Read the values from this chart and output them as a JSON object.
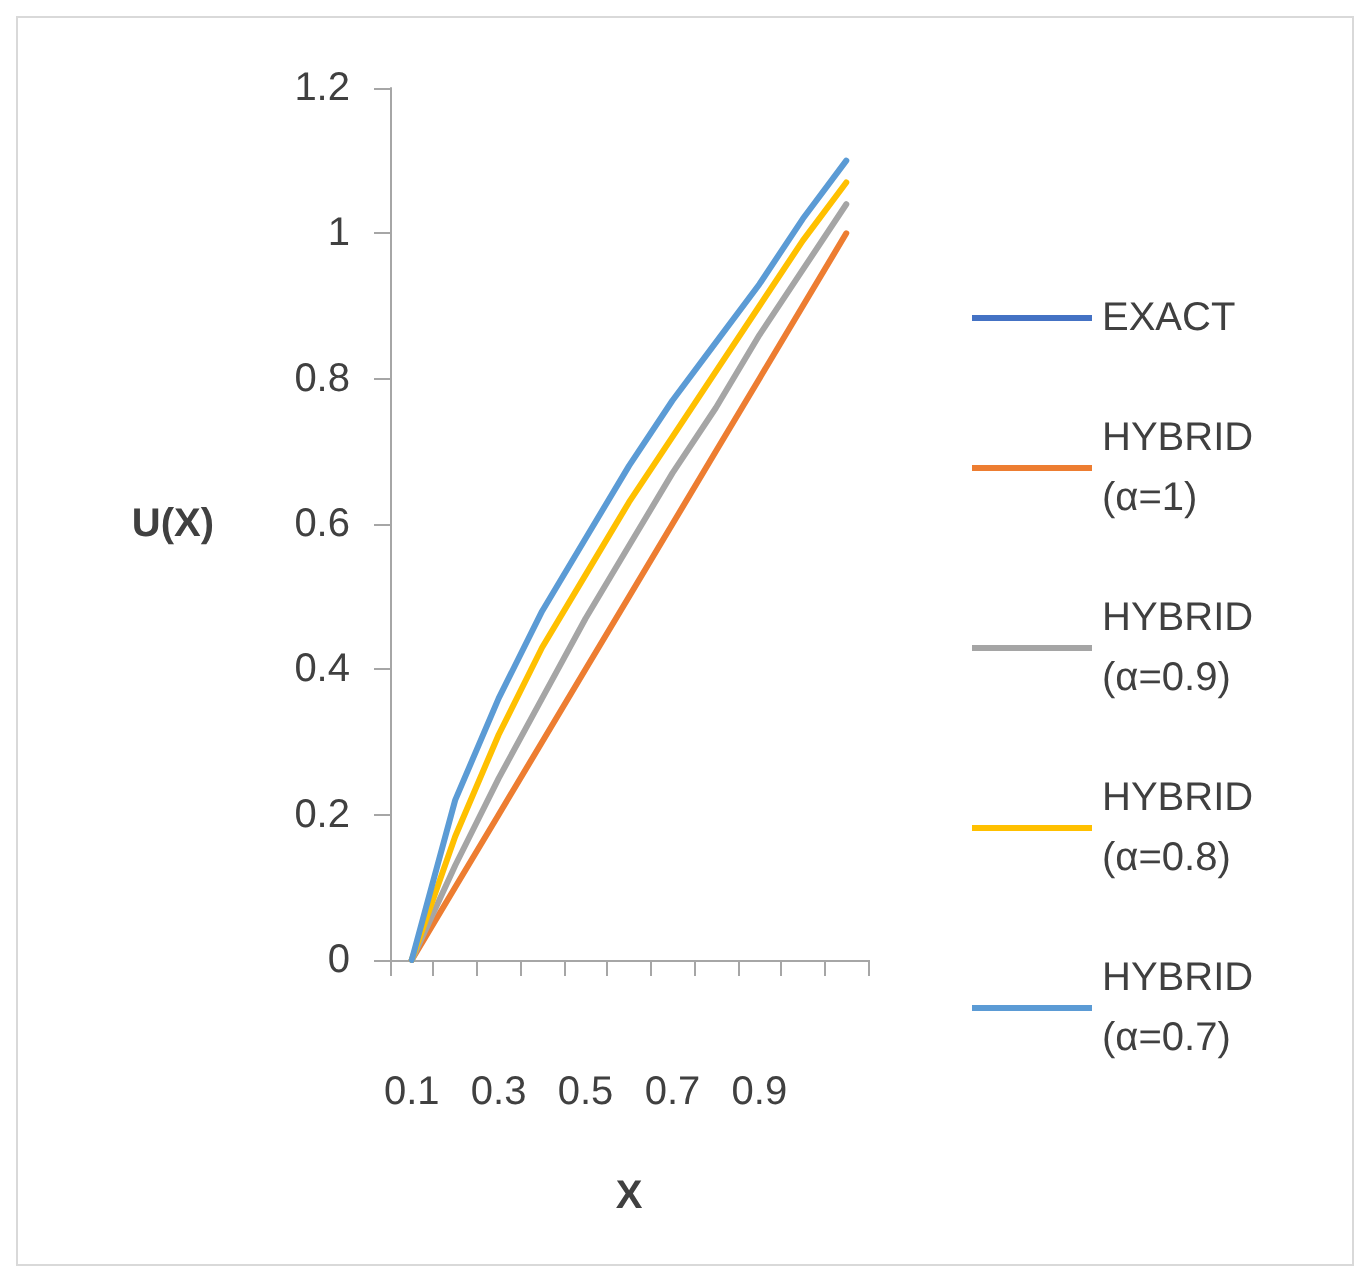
{
  "chart_data": {
    "type": "line",
    "xlabel": "X",
    "ylabel": "U(X)",
    "categories": [
      "0.1",
      null,
      "0.3",
      null,
      "0.5",
      null,
      "0.7",
      null,
      "0.9",
      null,
      null
    ],
    "series": [
      {
        "name": "EXACT",
        "color": "#4472c4",
        "values": [
          null,
          null,
          null,
          null,
          null,
          null,
          null,
          null,
          null,
          null,
          null
        ]
      },
      {
        "name": "HYBRID (α=1)",
        "color": "#ed7d31",
        "values": [
          0,
          0.1,
          0.2,
          0.3,
          0.4,
          0.5,
          0.6,
          0.7,
          0.8,
          0.9,
          1.0
        ]
      },
      {
        "name": "HYBRID (α=0.9)",
        "color": "#a5a5a5",
        "values": [
          0,
          0.13,
          0.25,
          0.36,
          0.47,
          0.57,
          0.67,
          0.76,
          0.86,
          0.95,
          1.04
        ]
      },
      {
        "name": "HYBRID (α=0.8)",
        "color": "#ffc000",
        "values": [
          0,
          0.17,
          0.31,
          0.43,
          0.53,
          0.63,
          0.72,
          0.81,
          0.9,
          0.99,
          1.07
        ]
      },
      {
        "name": "HYBRID (α=0.7)",
        "color": "#5b9bd5",
        "values": [
          0,
          0.22,
          0.36,
          0.48,
          0.58,
          0.68,
          0.77,
          0.85,
          0.93,
          1.02,
          1.1
        ]
      }
    ],
    "ylim": [
      0,
      1.2
    ],
    "yticks": [
      0,
      0.2,
      0.4,
      0.6,
      0.8,
      1,
      1.2
    ],
    "grid": false,
    "legend": "right",
    "marker": "none",
    "line_style": "solid"
  }
}
